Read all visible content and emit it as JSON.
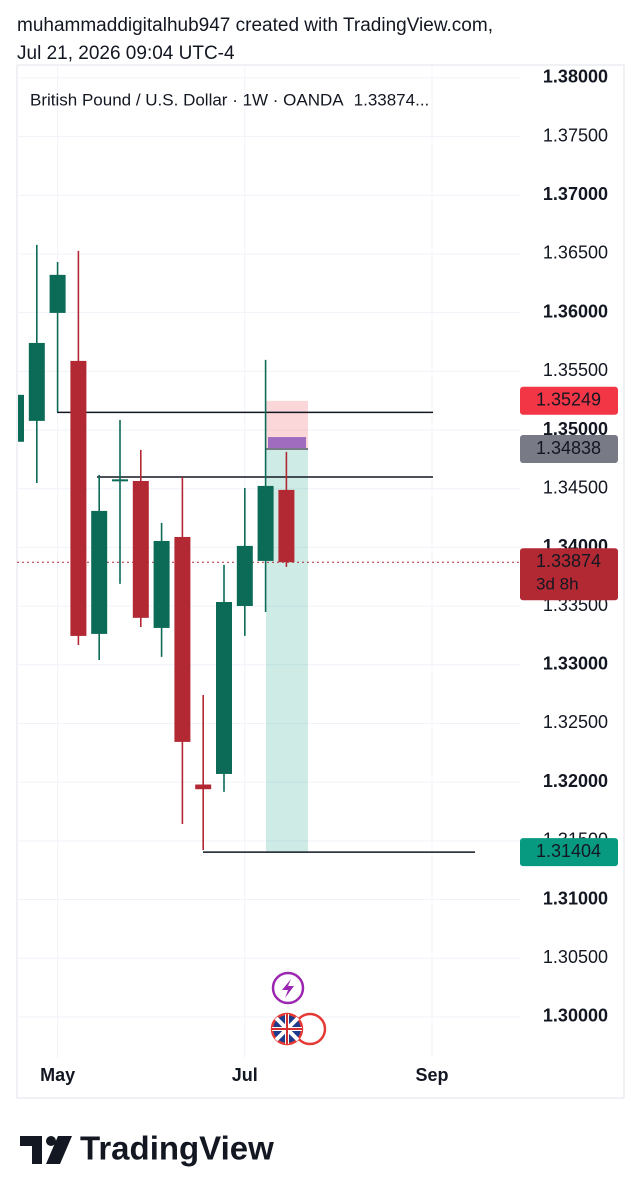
{
  "header": {
    "line1": "muhammaddigitalhub947 created with TradingView.com,",
    "line2": "Jul 21, 2026 09:04 UTC-4"
  },
  "chart_data": {
    "type": "candlestick",
    "title": "British Pound / U.S. Dollar · 1W · OANDA",
    "last_label": "1.33874...",
    "categories": [
      null,
      null,
      "May",
      null,
      null,
      null,
      null,
      null,
      null,
      null,
      null,
      "Jul",
      null,
      null,
      null,
      null,
      null,
      null,
      null,
      null,
      "Sep",
      null,
      null,
      null,
      null
    ],
    "open": [
      1.349,
      1.35078,
      1.35998,
      1.35589,
      1.33263,
      1.3457,
      1.34566,
      1.33314,
      1.34089,
      1.3198,
      1.3207,
      1.33501,
      1.33885,
      1.3449,
      null,
      null,
      null,
      null,
      null,
      null,
      null,
      null,
      null,
      null,
      null
    ],
    "high": [
      1.353,
      1.36577,
      1.36432,
      1.36526,
      1.34618,
      1.35086,
      1.34831,
      1.34209,
      1.346,
      1.32743,
      1.33851,
      1.34506,
      1.35598,
      1.34814,
      null,
      null,
      null,
      null,
      null,
      null,
      null,
      null,
      null,
      null,
      null
    ],
    "low": [
      1.349,
      1.34549,
      1.35154,
      1.33169,
      1.33041,
      1.33689,
      1.33322,
      1.33067,
      1.31644,
      1.31422,
      1.31917,
      1.33246,
      1.3345,
      1.33834,
      null,
      null,
      null,
      null,
      null,
      null,
      null,
      null,
      null,
      null,
      null
    ],
    "close": [
      1.353,
      1.35742,
      1.36322,
      1.33246,
      1.34311,
      1.3458,
      1.334,
      1.34055,
      1.32343,
      1.3194,
      1.33535,
      1.34013,
      1.34524,
      1.33874,
      null,
      null,
      null,
      null,
      null,
      null,
      null,
      null,
      null,
      null,
      null
    ],
    "up_color": "#0b6b57",
    "down_color": "#b22833",
    "ylim": [
      1.2965,
      1.3811
    ],
    "yticks": [
      {
        "value": 1.3,
        "label": "1.30000"
      },
      {
        "value": 1.305,
        "label": "1.30500"
      },
      {
        "value": 1.31,
        "label": "1.31000"
      },
      {
        "value": 1.315,
        "label": "1.31500"
      },
      {
        "value": 1.32,
        "label": "1.32000"
      },
      {
        "value": 1.325,
        "label": "1.32500"
      },
      {
        "value": 1.33,
        "label": "1.33000"
      },
      {
        "value": 1.335,
        "label": "1.33500"
      },
      {
        "value": 1.34,
        "label": "1.34000"
      },
      {
        "value": 1.345,
        "label": "1.34500"
      },
      {
        "value": 1.35,
        "label": "1.35000"
      },
      {
        "value": 1.355,
        "label": "1.35500"
      },
      {
        "value": 1.36,
        "label": "1.36000"
      },
      {
        "value": 1.365,
        "label": "1.36500"
      },
      {
        "value": 1.37,
        "label": "1.37000"
      },
      {
        "value": 1.375,
        "label": "1.37500"
      },
      {
        "value": 1.38,
        "label": "1.38000"
      }
    ],
    "grid": true,
    "levels": [
      1.3515,
      1.346
    ],
    "price_labels": [
      {
        "value": 1.35249,
        "color": "#f23645"
      },
      {
        "value": 1.34838,
        "color": "#787b86"
      },
      {
        "value": 1.33874,
        "color": "#b22833",
        "countdown": "3d 8h"
      },
      {
        "value": 1.31404,
        "color": "#089981"
      }
    ]
  },
  "footer": {
    "brand": "TradingView"
  }
}
